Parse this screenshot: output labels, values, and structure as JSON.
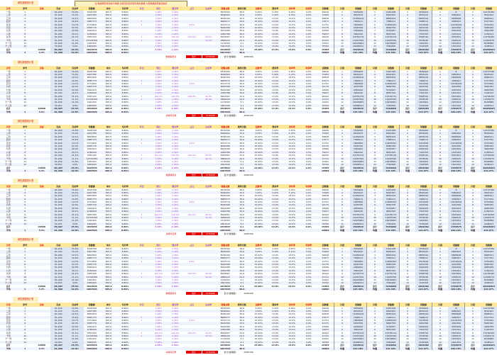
{
  "notice": "注:数据按照月份统计填报,请按实际情况填写相关数据,以便准确核算各项指标",
  "block_titles": [
    "销售数据统计表",
    "销售数据统计表",
    "销售数据统计表",
    "销售数据统计表",
    "销售数据统计表",
    "销售数据统计表"
  ],
  "headers": [
    "月份",
    "序号",
    "目标",
    "完成",
    "完成率",
    "销售额",
    "单价",
    "毛利率",
    "环比",
    "同比",
    "增长率",
    "占比",
    "达成率",
    "销售总额",
    "周转天数",
    "回款率",
    "费用率",
    "净利率",
    "利润率",
    "回款额",
    "月度",
    "销售额",
    "月度",
    "销售额",
    "月度",
    "销售额",
    "月度",
    "销售额",
    "月度",
    "销售额"
  ],
  "rows": [
    [
      "一月",
      "1",
      "",
      "61,209",
      "15.6%",
      "4528708",
      "305.0",
      "8.89%",
      "",
      "3.48%",
      "2.26%",
      "",
      "",
      "8576390",
      "36.0",
      "5.05%",
      "3.43%",
      "3.25%",
      "0.0%",
      "29649",
      "1",
      "3539409",
      "1",
      "1915348",
      "1",
      "3539404",
      "1",
      "8",
      "1",
      "14715780"
    ],
    [
      "二月",
      "2",
      "",
      "61,209",
      "15.4%",
      "4203785",
      "305.0",
      "8.89%",
      "",
      "3.48%",
      "2.26%",
      "",
      "",
      "8096402",
      "33.0",
      "5.05%",
      "3.43%",
      "3.13%",
      "0.0%",
      "72483",
      "2",
      "8593443",
      "2",
      "8093402",
      "2",
      "8593443",
      "2",
      "5684402",
      "2",
      "8593402"
    ],
    [
      "三月",
      "3",
      "",
      "61,209",
      "12.1%",
      "6652830",
      "305.0",
      "8.89%",
      "",
      "3.48%",
      "2.26%",
      "",
      "",
      "8036109",
      "30.0",
      "15.00%",
      "13.0%",
      "13.0%",
      "0.0%",
      "56828",
      "3",
      "11656416",
      "3",
      "8835419",
      "3",
      "6835419",
      "3",
      "5828408",
      "3",
      "9695611"
    ],
    [
      "四月",
      "4",
      "",
      "61,209",
      "16.6%",
      "6385773",
      "305.0",
      "8.89%",
      "1",
      "3.48%",
      "2.26%",
      "",
      "",
      "8985577",
      "39.0",
      "15.00%",
      "13.0%",
      "13.0%",
      "0.0%",
      "27677",
      "4",
      "7968211",
      "4",
      "7968211",
      "4",
      "7968211",
      "4",
      "3468307",
      "4",
      "5317552"
    ],
    [
      "五月",
      "5",
      "",
      "61,209",
      "14.7%",
      "5771820",
      "305.0",
      "8.89%",
      "1",
      "3.48%",
      "2.26%",
      "4.6%",
      "",
      "8723774",
      "36.0",
      "15.00%",
      "13.0%",
      "13.0%",
      "0.0%",
      "21751",
      "5",
      "7945809",
      "5",
      "12863342",
      "5",
      "5313816",
      "5",
      "14139316",
      "5",
      "3751824"
    ],
    [
      "六月",
      "6",
      "",
      "61,209",
      "22.0%",
      "4365770",
      "305.0",
      "8.89%",
      "",
      "3.48%",
      "2.26%",
      "",
      "",
      "8040396",
      "33.0",
      "15.00%",
      "13.0%",
      "13.0%",
      "0.0%",
      "22175",
      "6",
      "9436789",
      "6",
      "8666758",
      "6",
      "4242299",
      "6",
      "4242306",
      "6",
      "5665362"
    ],
    [
      "七月",
      "7",
      "",
      "61,209",
      "22.0%",
      "3294413",
      "305.0",
      "8.89%",
      "",
      "3.48%",
      "2.26%",
      "",
      "",
      "8242289",
      "30.0",
      "15.00%",
      "13.0%",
      "13.0%",
      "0.0%",
      "24580",
      "7",
      "2049992",
      "7",
      "3159957",
      "7",
      "3242209",
      "7",
      "3242209",
      "7",
      "4949358"
    ],
    [
      "八月",
      "8",
      "",
      "61,209",
      "20.1%",
      "1036529",
      "305.0",
      "8.89%",
      "",
      "3.48%",
      "2.26%",
      "",
      "",
      "1084786",
      "30.0",
      "15.00%",
      "13.0%",
      "13.0%",
      "0.0%",
      "79057",
      "8",
      "3962220",
      "8",
      "8653329",
      "8",
      "7302763",
      "8",
      "1632161",
      "8",
      "1182914"
    ],
    [
      "九月",
      "9",
      "",
      "61,209",
      "21.1%",
      "3355193",
      "305.0",
      "8.89%",
      "1",
      "100.0%",
      "100.0%",
      "100.0%",
      "40.0%",
      "8294567",
      "22.0",
      "15.00%",
      "13.0%",
      "13.0%",
      "0.0%",
      "26442",
      "9",
      "10755179",
      "9",
      "10755179",
      "9",
      "5328744",
      "9",
      "5553491",
      "9",
      "14756183"
    ],
    [
      "十月",
      "10",
      "",
      "61,209",
      "11.1%",
      "12762266",
      "305.0",
      "8.89%",
      "1",
      "3.48%",
      "2.26%",
      "",
      "40.0%",
      "2889223",
      "22.0",
      "15.00%",
      "13.0%",
      "13.0%",
      "0.0%",
      "21741",
      "10",
      "14067590",
      "10",
      "14067590",
      "10",
      "3578036",
      "10",
      "2365615",
      "10",
      "11826375"
    ],
    [
      "十一月",
      "11",
      "",
      "61,209",
      "11.0%",
      "1162452",
      "305.0",
      "8.89%",
      "",
      "3.48%",
      "2.26%",
      "",
      "",
      "1176303",
      "3.1",
      "15.00%",
      "13.0%",
      "13.0%",
      "0.0%",
      "22491",
      "11",
      "16229981",
      "11",
      "16229981",
      "11",
      "1622961",
      "11",
      "1676301",
      "11",
      "8146869"
    ],
    [
      "十二月",
      "12",
      "",
      "50,052",
      "9.6%",
      "1965005",
      "305.0",
      "8.89%",
      "",
      "3.48%",
      "2.26%",
      "",
      "",
      "1801520",
      "3.1",
      "15.00%",
      "13.0%",
      "13.0%",
      "0.0%",
      "78762",
      "12",
      "16668541",
      "12",
      "7562608",
      "12",
      "7162508",
      "12",
      "1691302",
      "12",
      "4168913"
    ],
    [
      "合计",
      "",
      "40560",
      "65,407",
      "25.5%",
      "1843938",
      "305.0",
      "8.89%",
      "",
      "3.48%",
      "2.26%",
      "",
      "",
      "1643697",
      "3.1",
      "15.00%",
      "13.0%",
      "13.0%",
      "0.0%",
      "15365",
      "合计",
      "1526516",
      "合计",
      "7249069",
      "合计",
      "1301482",
      "合计",
      "1762675",
      "合计",
      "10160015"
    ],
    [
      "平均",
      "1",
      "3.4%",
      "61,360",
      "22.0%",
      "1962506",
      "305.0",
      "8.89%",
      "",
      "",
      "",
      "",
      "",
      "1997263",
      "40.0",
      "",
      "",
      "",
      "",
      "19082",
      "均值",
      "115.30%",
      "均值",
      "115.30%",
      "均值",
      "114.97%",
      "均值",
      "220.18%",
      "均值",
      "114.97%"
    ]
  ],
  "summary_label": "合计",
  "summary_value": "1376996",
  "summary_sub_label": "合计(含税额)",
  "summary_sub_value": "2086306",
  "note_red_1": "数据需核对",
  "note_red_2": "请填写完整",
  "colors": {
    "header": "#fce79a",
    "alt_row": "#eef3fb",
    "accent_red": "#e00000",
    "purple": "#a050d0",
    "light_blue": "#dbe5f4"
  }
}
